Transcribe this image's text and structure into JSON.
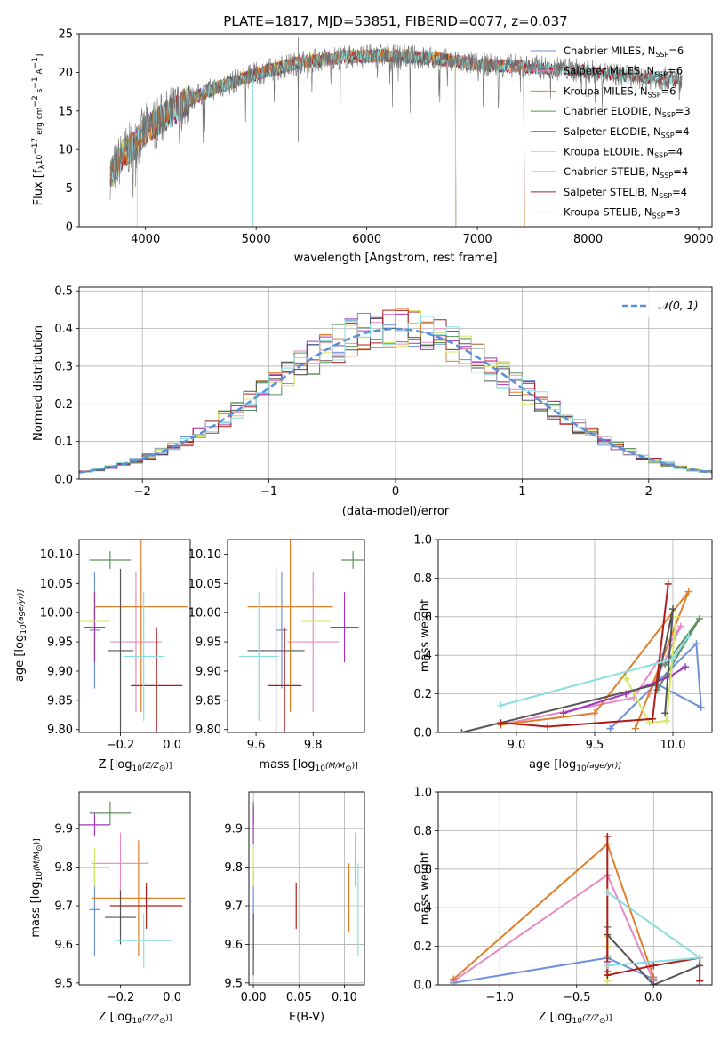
{
  "colors": [
    "#6c8fdc",
    "#e58ac4",
    "#e07e2a",
    "#5e8f5e",
    "#a236b8",
    "#d5e863",
    "#555555",
    "#b01c1c",
    "#8adde0"
  ],
  "chart_data": [
    {
      "type": "line",
      "title": "PLATE=1817, MJD=53851, FIBERID=0077, z=0.037",
      "xlabel": "wavelength [Angstrom, rest frame]",
      "ylabel": "Flux [f",
      "ylabel_parts": [
        "Flux [f",
        "λ",
        "10",
        "−17",
        " erg cm",
        "−2",
        " s",
        "−1",
        " A",
        "−1",
        "]"
      ],
      "xlim": [
        3400,
        9120
      ],
      "ylim": [
        0,
        25
      ],
      "xticks": [
        "4000",
        "5000",
        "6000",
        "7000",
        "8000",
        "9000"
      ],
      "yticks": [
        "0",
        "5",
        "10",
        "15",
        "20",
        "25"
      ],
      "legend_position": "upper right",
      "series": [
        {
          "label": "Chabrier MILES, N",
          "sub": "SSP",
          "suffix": "=6"
        },
        {
          "label": "Salpeter MILES, N",
          "sub": "SSP",
          "suffix": "=6"
        },
        {
          "label": "Kroupa MILES, N",
          "sub": "SSP",
          "suffix": "=6"
        },
        {
          "label": "Chabrier ELODIE, N",
          "sub": "SSP",
          "suffix": "=3"
        },
        {
          "label": "Salpeter ELODIE, N",
          "sub": "SSP",
          "suffix": "=4"
        },
        {
          "label": "Kroupa ELODIE, N",
          "sub": "SSP",
          "suffix": "=4"
        },
        {
          "label": "Chabrier STELIB, N",
          "sub": "SSP",
          "suffix": "=4"
        },
        {
          "label": "Salpeter STELIB, N",
          "sub": "SSP",
          "suffix": "=4"
        },
        {
          "label": "Kroupa STELIB, N",
          "sub": "SSP",
          "suffix": "=3"
        }
      ],
      "continuum_points": [
        [
          3700,
          7
        ],
        [
          3800,
          9.5
        ],
        [
          3900,
          10.5
        ],
        [
          4000,
          12.5
        ],
        [
          4200,
          14.5
        ],
        [
          4400,
          16.5
        ],
        [
          4600,
          17.8
        ],
        [
          4800,
          18.8
        ],
        [
          5000,
          19.8
        ],
        [
          5400,
          21.3
        ],
        [
          5800,
          22
        ],
        [
          6200,
          22.2
        ],
        [
          6600,
          21.8
        ],
        [
          7000,
          21
        ],
        [
          7400,
          20.8
        ],
        [
          7800,
          20.4
        ],
        [
          8200,
          19.8
        ],
        [
          8600,
          19.3
        ],
        [
          8850,
          19
        ]
      ],
      "model_ranges": {
        "MILES_end": 7420,
        "ELODIE_end": 6800,
        "STELIB_end": 8850
      }
    },
    {
      "type": "histogram",
      "xlabel": "(data-model)/error",
      "ylabel": "Normed distribution",
      "xlim": [
        -2.5,
        2.5
      ],
      "ylim": [
        0,
        0.51
      ],
      "xticks": [
        "−2",
        "−1",
        "0",
        "1",
        "2"
      ],
      "yticks": [
        "0.0",
        "0.1",
        "0.2",
        "0.3",
        "0.4",
        "0.5"
      ],
      "bin_width": 0.1,
      "reference_curve": "𝒩(0, 1)",
      "grid": true,
      "legend_position": "upper right"
    },
    {
      "type": "scatter",
      "xlabel": "Z [log",
      "xlabel_parts": [
        "Z [log",
        "10",
        "(Z/Z",
        "⊙",
        ")]"
      ],
      "ylabel_parts": [
        "age  [log",
        "10",
        "(age/yr)]"
      ],
      "xlim": [
        -0.36,
        0.07
      ],
      "ylim": [
        9.795,
        10.125
      ],
      "xticks": [
        "−0.2",
        "0.0"
      ],
      "yticks": [
        "9.80",
        "9.85",
        "9.90",
        "9.95",
        "10.00",
        "10.05",
        "10.10"
      ],
      "points": [
        {
          "x": -0.3,
          "xe": 0.02,
          "y": 9.97,
          "ye": 0.1
        },
        {
          "x": -0.14,
          "xe": 0.1,
          "y": 9.95,
          "ye": 0.12
        },
        {
          "x": -0.12,
          "xe": 0.18,
          "y": 10.01,
          "ye": 0.18
        },
        {
          "x": -0.24,
          "xe": 0.08,
          "y": 10.09,
          "ye": 0.015
        },
        {
          "x": -0.3,
          "xe": 0.04,
          "y": 9.975,
          "ye": 0.06
        },
        {
          "x": -0.31,
          "xe": 0.07,
          "y": 9.985,
          "ye": 0.06
        },
        {
          "x": -0.2,
          "xe": 0.05,
          "y": 9.935,
          "ye": 0.14
        },
        {
          "x": -0.06,
          "xe": 0.1,
          "y": 9.875,
          "ye": 0.1
        },
        {
          "x": -0.11,
          "xe": 0.08,
          "y": 9.925,
          "ye": 0.11
        }
      ]
    },
    {
      "type": "scatter",
      "xlabel_parts": [
        "mass [log",
        "10",
        "(M/M",
        "⊙",
        ")]"
      ],
      "xlim": [
        9.5,
        9.98
      ],
      "ylim": [
        9.795,
        10.125
      ],
      "xticks": [
        "9.6",
        "9.8"
      ],
      "yticks": [
        "9.80",
        "9.85",
        "9.90",
        "9.95",
        "10.00",
        "10.05",
        "10.10"
      ],
      "points": [
        {
          "x": 9.69,
          "xe": 0.02,
          "y": 9.97,
          "ye": 0.1
        },
        {
          "x": 9.8,
          "xe": 0.09,
          "y": 9.95,
          "ye": 0.12
        },
        {
          "x": 9.72,
          "xe": 0.15,
          "y": 10.01,
          "ye": 0.18
        },
        {
          "x": 9.94,
          "xe": 0.04,
          "y": 10.09,
          "ye": 0.015
        },
        {
          "x": 9.91,
          "xe": 0.05,
          "y": 9.975,
          "ye": 0.06
        },
        {
          "x": 9.81,
          "xe": 0.05,
          "y": 9.985,
          "ye": 0.06
        },
        {
          "x": 9.67,
          "xe": 0.1,
          "y": 9.935,
          "ye": 0.14
        },
        {
          "x": 9.7,
          "xe": 0.06,
          "y": 9.875,
          "ye": 0.1
        },
        {
          "x": 9.61,
          "xe": 0.07,
          "y": 9.925,
          "ye": 0.11
        }
      ]
    },
    {
      "type": "line",
      "xlabel_parts": [
        "age  [log",
        "10",
        "(age/yr)]"
      ],
      "ylabel": "mass weight",
      "xlim": [
        8.5,
        10.25
      ],
      "ylim": [
        0,
        1.0
      ],
      "xticks": [
        "9.0",
        "9.5",
        "10.0"
      ],
      "yticks": [
        "0.0",
        "0.2",
        "0.4",
        "0.6",
        "0.8",
        "1.0"
      ],
      "grid": true,
      "series": [
        {
          "x": [
            9.6,
            10.15,
            10.18,
            9.9
          ],
          "y": [
            0.02,
            0.46,
            0.13,
            0.25
          ]
        },
        {
          "x": [
            8.9,
            9.75,
            10.05,
            9.85
          ],
          "y": [
            0.04,
            0.18,
            0.55,
            0.2
          ]
        },
        {
          "x": [
            8.9,
            9.5,
            10.1,
            9.76
          ],
          "y": [
            0.04,
            0.1,
            0.73,
            0.02
          ]
        },
        {
          "x": [
            9.9,
            10.17,
            9.95
          ],
          "y": [
            0.22,
            0.59,
            0.35
          ]
        },
        {
          "x": [
            9.3,
            9.7,
            9.98,
            10.08
          ],
          "y": [
            0.1,
            0.2,
            0.29,
            0.34
          ]
        },
        {
          "x": [
            9.7,
            9.85,
            9.96,
            10.02
          ],
          "y": [
            0.28,
            0.05,
            0.06,
            0.6
          ]
        },
        {
          "x": [
            8.65,
            9.9,
            10.0,
            9.95
          ],
          "y": [
            0.0,
            0.25,
            0.64,
            0.1
          ]
        },
        {
          "x": [
            8.9,
            9.2,
            9.87,
            9.97
          ],
          "y": [
            0.05,
            0.03,
            0.07,
            0.77
          ]
        },
        {
          "x": [
            8.9,
            10.0,
            10.1
          ],
          "y": [
            0.14,
            0.38,
            0.5
          ]
        }
      ]
    },
    {
      "type": "scatter",
      "xlabel_parts": [
        "Z [log",
        "10",
        "(Z/Z",
        "⊙",
        ")]"
      ],
      "ylabel_parts": [
        "mass [log",
        "10",
        "(M/M",
        "⊙",
        ")]"
      ],
      "xlim": [
        -0.36,
        0.07
      ],
      "ylim": [
        9.495,
        9.995
      ],
      "xticks": [
        "−0.2",
        "0.0"
      ],
      "yticks": [
        "9.5",
        "9.6",
        "9.7",
        "9.8",
        "9.9"
      ],
      "points": [
        {
          "x": -0.3,
          "xe": 0.02,
          "y": 9.69,
          "ye": 0.12
        },
        {
          "x": -0.2,
          "xe": 0.11,
          "y": 9.81,
          "ye": 0.08
        },
        {
          "x": -0.13,
          "xe": 0.18,
          "y": 9.72,
          "ye": 0.15
        },
        {
          "x": -0.24,
          "xe": 0.08,
          "y": 9.94,
          "ye": 0.03
        },
        {
          "x": -0.3,
          "xe": 0.06,
          "y": 9.91,
          "ye": 0.03
        },
        {
          "x": -0.3,
          "xe": 0.06,
          "y": 9.8,
          "ye": 0.05
        },
        {
          "x": -0.2,
          "xe": 0.06,
          "y": 9.67,
          "ye": 0.07
        },
        {
          "x": -0.1,
          "xe": 0.14,
          "y": 9.7,
          "ye": 0.06
        },
        {
          "x": -0.11,
          "xe": 0.11,
          "y": 9.61,
          "ye": 0.07
        }
      ]
    },
    {
      "type": "scatter",
      "xlabel": "E(B-V)",
      "xlim": [
        -0.005,
        0.122
      ],
      "ylim": [
        9.495,
        9.995
      ],
      "xticks": [
        "0.00",
        "0.05",
        "0.10"
      ],
      "yticks": [
        "9.5",
        "9.6",
        "9.7",
        "9.8",
        "9.9"
      ],
      "grid": true,
      "points": [
        {
          "x": 0.0,
          "xe": 0,
          "y": 9.68,
          "ye": 0.12
        },
        {
          "x": 0.112,
          "xe": 0,
          "y": 9.82,
          "ye": 0.07
        },
        {
          "x": 0.105,
          "xe": 0,
          "y": 9.72,
          "ye": 0.09
        },
        {
          "x": 0.0,
          "xe": 0,
          "y": 9.94,
          "ye": 0.03
        },
        {
          "x": 0.0,
          "xe": 0,
          "y": 9.91,
          "ye": 0.05
        },
        {
          "x": 0.0,
          "xe": 0,
          "y": 9.8,
          "ye": 0.05
        },
        {
          "x": 0.0,
          "xe": 0,
          "y": 9.6,
          "ye": 0.08
        },
        {
          "x": 0.047,
          "xe": 0,
          "y": 9.7,
          "ye": 0.06
        },
        {
          "x": 0.115,
          "xe": 0,
          "y": 9.69,
          "ye": 0.12
        }
      ]
    },
    {
      "type": "line",
      "xlabel_parts": [
        "Z [log",
        "10",
        "(Z/Z",
        "⊙",
        ")]"
      ],
      "ylabel": "mass weight",
      "xlim": [
        -1.4,
        0.38
      ],
      "ylim": [
        0,
        1.0
      ],
      "xticks": [
        "−1.0",
        "−0.5",
        "0.0"
      ],
      "yticks": [
        "0.0",
        "0.2",
        "0.4",
        "0.6",
        "0.8",
        "1.0"
      ],
      "grid": true,
      "series": [
        {
          "x": [
            -1.3,
            -0.3,
            0.0
          ],
          "y": [
            0.01,
            0.14,
            0.03
          ]
        },
        {
          "x": [
            -1.3,
            -0.3,
            0.0
          ],
          "y": [
            0.02,
            0.57,
            0.02
          ]
        },
        {
          "x": [
            -1.3,
            -0.3,
            0.0
          ],
          "y": [
            0.03,
            0.73,
            0.04
          ]
        },
        {
          "x": [
            -0.3,
            -0.3,
            -0.3
          ],
          "y": [
            0.3,
            0.15,
            0.07
          ]
        },
        {
          "x": [
            -0.3,
            -0.3,
            -0.3
          ],
          "y": [
            0.2,
            0.12,
            0.05
          ]
        },
        {
          "x": [
            -0.3,
            -0.3,
            -0.3
          ],
          "y": [
            0.25,
            0.2,
            0.02
          ]
        },
        {
          "x": [
            -0.3,
            0.0,
            0.3
          ],
          "y": [
            0.26,
            0.0,
            0.1
          ]
        },
        {
          "x": [
            -0.3,
            -0.3,
            0.0,
            0.3,
            0.3
          ],
          "y": [
            0.77,
            0.05,
            0.1,
            0.14,
            0.02
          ]
        },
        {
          "x": [
            -0.3,
            0.3,
            -0.3
          ],
          "y": [
            0.48,
            0.14,
            0.1
          ]
        }
      ]
    }
  ]
}
